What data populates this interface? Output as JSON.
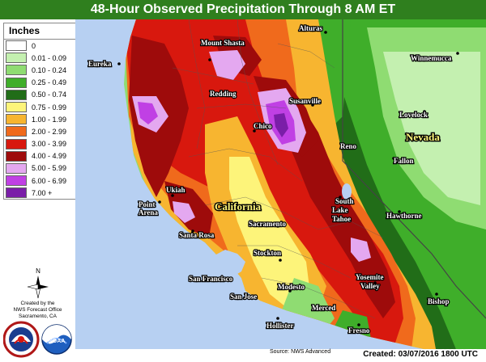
{
  "title": "48-Hour Observed Precipitation Through 8 AM ET",
  "legend": {
    "title": "Inches",
    "items": [
      {
        "label": "0",
        "color": "#ffffff"
      },
      {
        "label": "0.01 - 0.09",
        "color": "#c4f0b0"
      },
      {
        "label": "0.10 - 0.24",
        "color": "#8fdc72"
      },
      {
        "label": "0.25 - 0.49",
        "color": "#3fae2a"
      },
      {
        "label": "0.50 - 0.74",
        "color": "#216d18"
      },
      {
        "label": "0.75 - 0.99",
        "color": "#fdf47a"
      },
      {
        "label": "1.00 - 1.99",
        "color": "#f7b530"
      },
      {
        "label": "2.00 - 2.99",
        "color": "#f06a1c"
      },
      {
        "label": "3.00 - 3.99",
        "color": "#d8180e"
      },
      {
        "label": "4.00 - 4.99",
        "color": "#9e0b0b"
      },
      {
        "label": "5.00 - 5.99",
        "color": "#e4a8f0"
      },
      {
        "label": "6.00 - 6.99",
        "color": "#c040e4"
      },
      {
        "label": "7.00 +",
        "color": "#7a1ea8"
      }
    ]
  },
  "credit": {
    "line1": "Created by the",
    "line2": "NWS Forecast Office",
    "line3": "Sacramento, CA"
  },
  "logos": {
    "nws": "NATIONAL WEATHER SERVICE",
    "noaa": "NOAA"
  },
  "compass_letter": "N",
  "cities": {
    "mount_shasta": "Mount Shasta",
    "alturas": "Alturas",
    "winnemucca": "Winnemucca",
    "eureka": "Eureka",
    "redding": "Redding",
    "susanville": "Susanville",
    "lovelock": "Lovelock",
    "reno": "Reno",
    "chico": "Chico",
    "fallon": "Fallon",
    "ukiah": "Ukiah",
    "point_arena_1": "Point",
    "point_arena_2": "Arena",
    "south_lake_tahoe_1": "South",
    "south_lake_tahoe_2": "Lake",
    "south_lake_tahoe_3": "Tahoe",
    "sacramento": "Sacramento",
    "hawthorne": "Hawthorne",
    "santa_rosa": "Santa Rosa",
    "stockton": "Stockton",
    "san_francisco": "San Francisco",
    "modesto": "Modesto",
    "yosemite_1": "Yosemite",
    "yosemite_2": "Valley",
    "san_jose": "San Jose",
    "bishop": "Bishop",
    "merced": "Merced",
    "hollister": "Hollister",
    "fresno": "Fresno"
  },
  "states": {
    "california": "California",
    "nevada": "Nevada"
  },
  "source": "Source: NWS Advanced",
  "created": "Created: 03/07/2016 1800 UTC"
}
